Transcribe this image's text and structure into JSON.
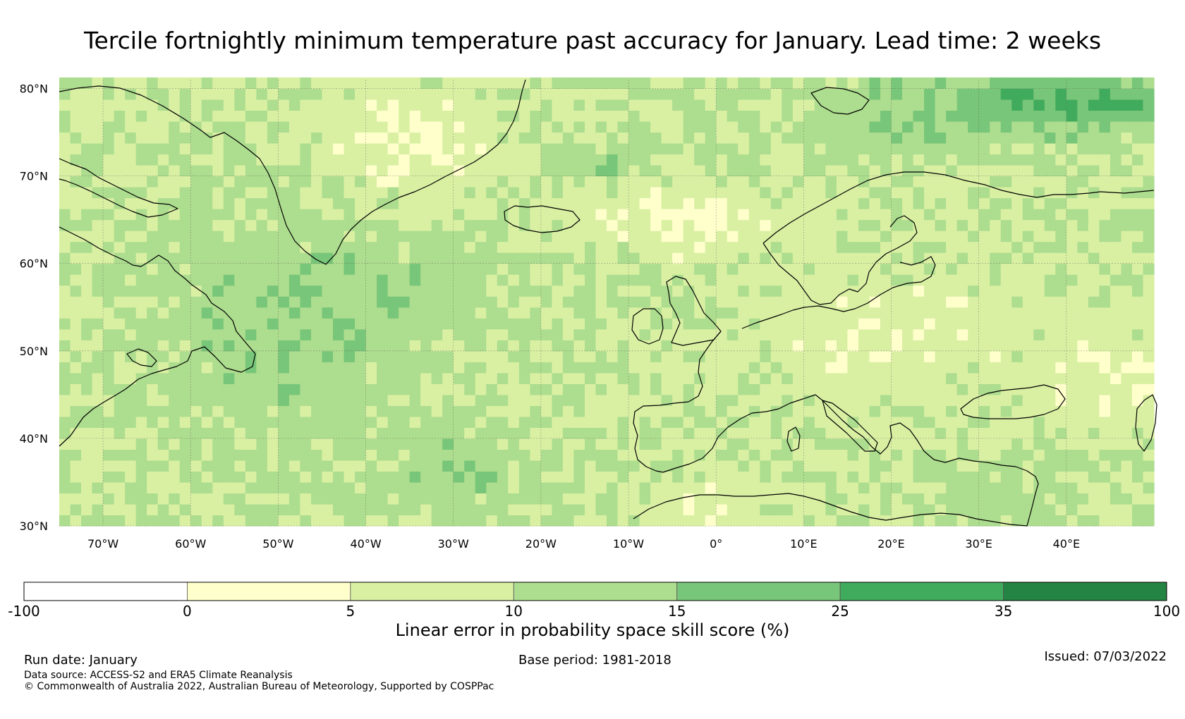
{
  "title": "Tercile fortnightly minimum temperature past accuracy for January. Lead time: 2 weeks",
  "map": {
    "lon_range": [
      -75,
      50
    ],
    "lat_range": [
      30,
      81
    ],
    "lat_ticks": [
      {
        "value": 30,
        "label": "30°N"
      },
      {
        "value": 40,
        "label": "40°N"
      },
      {
        "value": 50,
        "label": "50°N"
      },
      {
        "value": 60,
        "label": "60°N"
      },
      {
        "value": 70,
        "label": "70°N"
      },
      {
        "value": 80,
        "label": "80°N"
      }
    ],
    "lon_ticks": [
      {
        "value": -70,
        "label": "70°W"
      },
      {
        "value": -60,
        "label": "60°W"
      },
      {
        "value": -50,
        "label": "50°W"
      },
      {
        "value": -40,
        "label": "40°W"
      },
      {
        "value": -30,
        "label": "30°W"
      },
      {
        "value": -20,
        "label": "20°W"
      },
      {
        "value": -10,
        "label": "10°W"
      },
      {
        "value": 0,
        "label": "0°"
      },
      {
        "value": 10,
        "label": "10°E"
      },
      {
        "value": 20,
        "label": "20°E"
      },
      {
        "value": 30,
        "label": "30°E"
      },
      {
        "value": 40,
        "label": "40°E"
      }
    ]
  },
  "colorbar": {
    "bounds": [
      -100,
      0,
      5,
      10,
      15,
      25,
      35,
      100
    ],
    "labels": [
      "-100",
      "0",
      "5",
      "10",
      "15",
      "25",
      "35",
      "100"
    ],
    "colors": [
      "#ffffff",
      "#ffffcc",
      "#d9f0a3",
      "#addd8e",
      "#78c679",
      "#41ab5d",
      "#238443"
    ],
    "title": "Linear error in probability space skill score (%)"
  },
  "footer": {
    "run_date": "Run date: January",
    "base_period": "Base period: 1981-2018",
    "issued": "Issued: 07/03/2022",
    "data_source": "Data source: ACCESS-S2 and ERA5 Climate Reanalysis",
    "copyright": "© Commonwealth of Australia 2022, Australian Bureau of Meteorology, Supported by COSPPac"
  }
}
